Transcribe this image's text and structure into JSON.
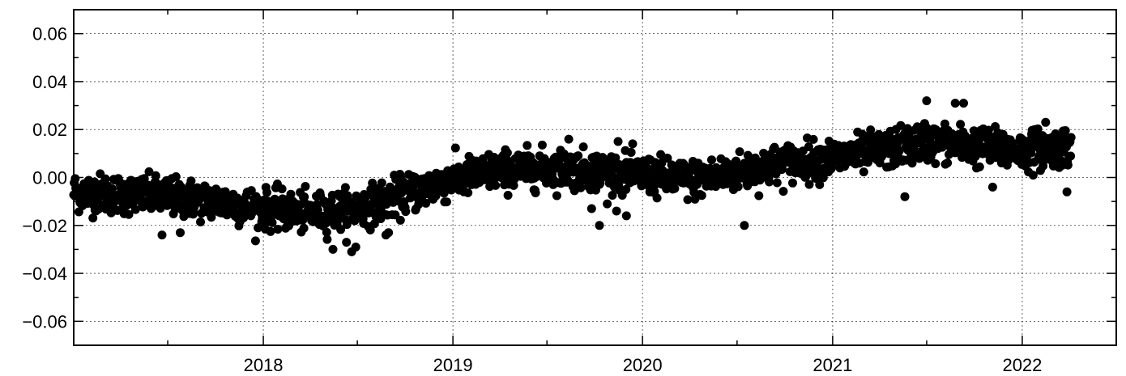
{
  "chart_data": {
    "type": "scatter",
    "title": "",
    "xlabel": "",
    "ylabel": "",
    "grid": true,
    "legend": "none",
    "marker_color": "#000000",
    "x_range": [
      "2017-01-01",
      "2022-07-01"
    ],
    "ylim": [
      -0.07,
      0.07
    ],
    "y_ticks": [
      {
        "value": 0.06,
        "label": "0.06"
      },
      {
        "value": 0.04,
        "label": "0.04"
      },
      {
        "value": 0.02,
        "label": "0.02"
      },
      {
        "value": 0.0,
        "label": "0.00"
      },
      {
        "value": -0.02,
        "label": "−0.02"
      },
      {
        "value": -0.04,
        "label": "−0.04"
      },
      {
        "value": -0.06,
        "label": "−0.06"
      }
    ],
    "y_minor_ticks": [
      0.05,
      0.03,
      0.01,
      -0.01,
      -0.03,
      -0.05
    ],
    "x_ticks": [
      {
        "value": "2018-01-01",
        "label": "2018"
      },
      {
        "value": "2019-01-01",
        "label": "2019"
      },
      {
        "value": "2020-01-01",
        "label": "2020"
      },
      {
        "value": "2021-01-01",
        "label": "2021"
      },
      {
        "value": "2022-01-01",
        "label": "2022"
      }
    ],
    "x_minor_ticks": [
      "2017-07-01",
      "2018-07-01",
      "2019-07-01",
      "2020-07-01",
      "2021-07-01",
      "2022-07-01"
    ],
    "trend": [
      [
        "2017-01-01",
        -0.006
      ],
      [
        "2017-04-01",
        -0.007
      ],
      [
        "2017-07-01",
        -0.008
      ],
      [
        "2017-10-01",
        -0.01
      ],
      [
        "2018-01-01",
        -0.013
      ],
      [
        "2018-04-01",
        -0.015
      ],
      [
        "2018-07-01",
        -0.013
      ],
      [
        "2018-10-01",
        -0.007
      ],
      [
        "2019-01-01",
        -0.001
      ],
      [
        "2019-04-01",
        0.003
      ],
      [
        "2019-07-01",
        0.004
      ],
      [
        "2019-10-01",
        0.003
      ],
      [
        "2020-01-01",
        0.001
      ],
      [
        "2020-04-01",
        -0.001
      ],
      [
        "2020-07-01",
        0.002
      ],
      [
        "2020-10-01",
        0.006
      ],
      [
        "2021-01-01",
        0.008
      ],
      [
        "2021-04-01",
        0.011
      ],
      [
        "2021-07-01",
        0.015
      ],
      [
        "2021-10-01",
        0.013
      ],
      [
        "2022-01-01",
        0.011
      ],
      [
        "2022-04-01",
        0.013
      ]
    ],
    "scatter_sd": 0.004,
    "series_end": "2022-04-05",
    "outliers": [
      [
        "2017-06-20",
        -0.024
      ],
      [
        "2017-07-25",
        -0.023
      ],
      [
        "2018-05-15",
        -0.03
      ],
      [
        "2018-06-20",
        -0.031
      ],
      [
        "2018-06-28",
        -0.029
      ],
      [
        "2018-08-25",
        -0.024
      ],
      [
        "2018-08-30",
        -0.023
      ],
      [
        "2019-08-12",
        0.016
      ],
      [
        "2019-09-25",
        -0.013
      ],
      [
        "2019-10-10",
        -0.02
      ],
      [
        "2019-10-25",
        -0.011
      ],
      [
        "2019-11-15",
        0.015
      ],
      [
        "2019-12-01",
        -0.016
      ],
      [
        "2020-07-15",
        -0.02
      ],
      [
        "2021-05-20",
        -0.008
      ],
      [
        "2021-07-01",
        0.032
      ],
      [
        "2021-08-25",
        0.031
      ],
      [
        "2021-09-10",
        0.031
      ],
      [
        "2021-11-05",
        -0.004
      ],
      [
        "2022-01-25",
        0.02
      ],
      [
        "2022-02-15",
        0.023
      ],
      [
        "2022-03-28",
        -0.006
      ]
    ]
  }
}
